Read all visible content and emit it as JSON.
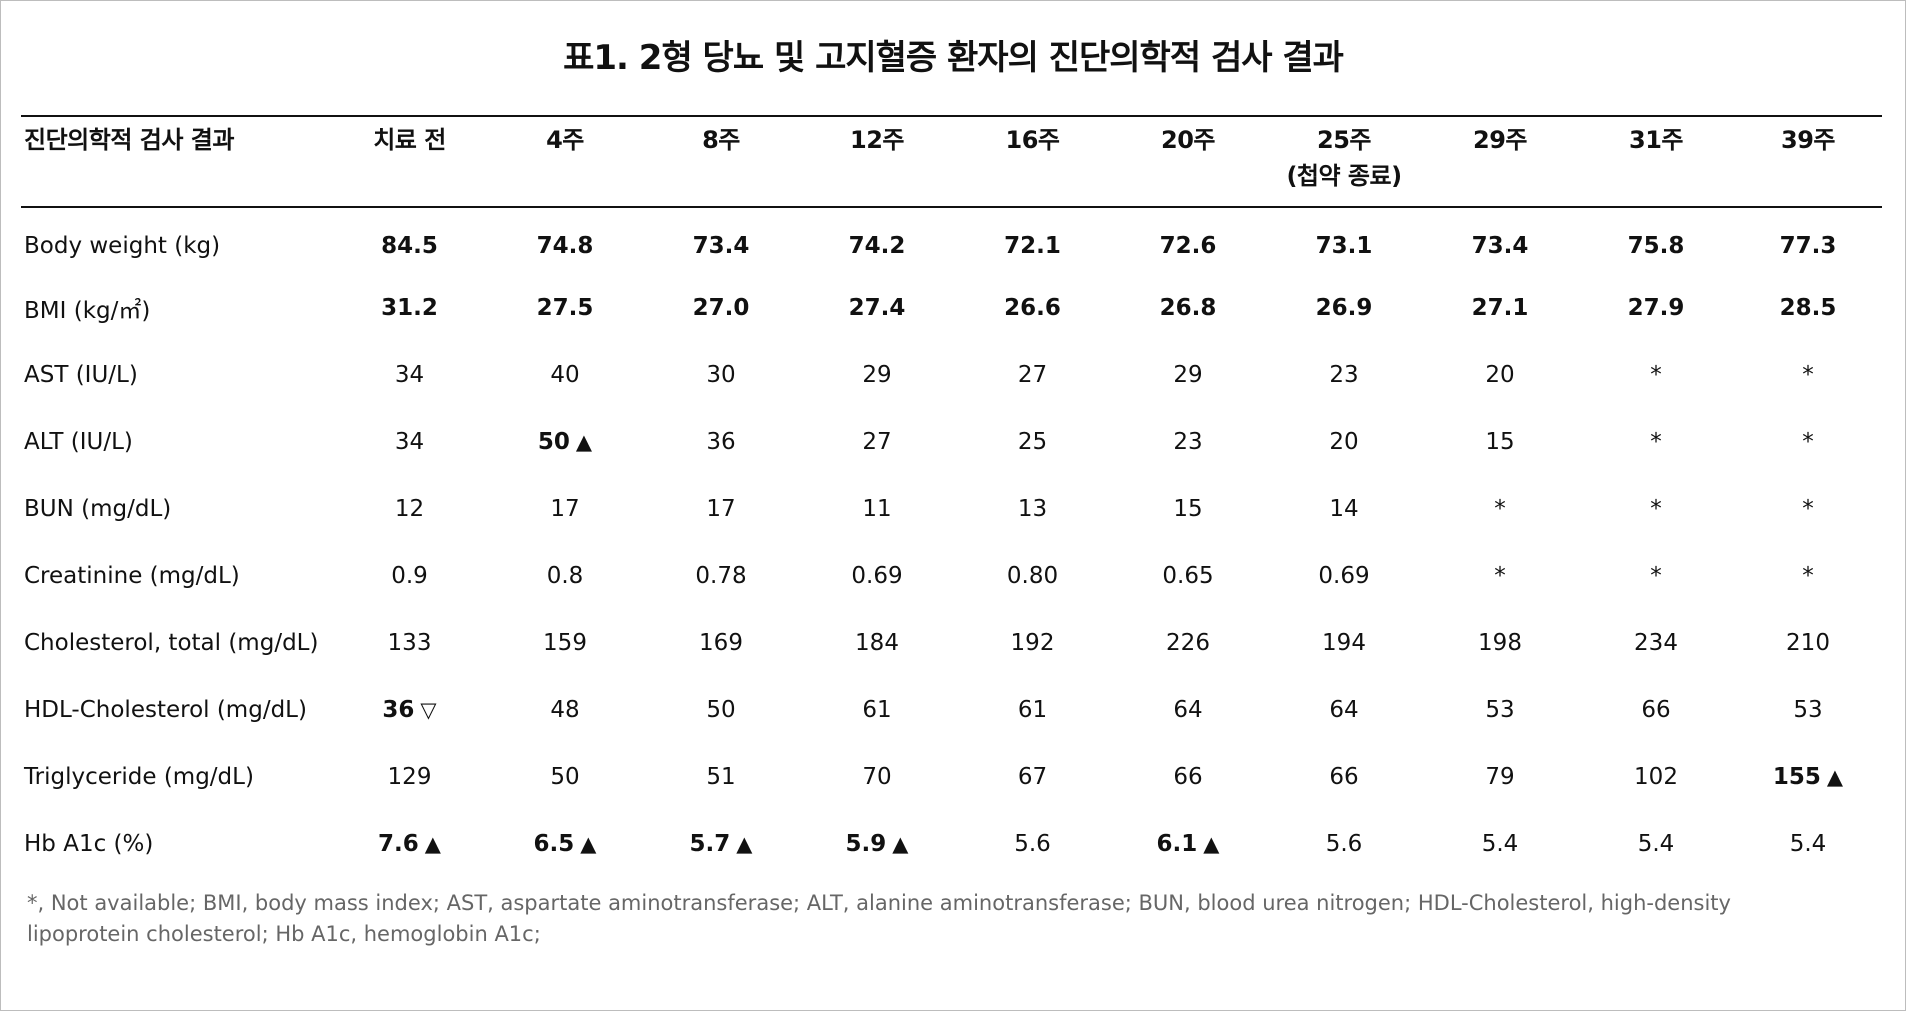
{
  "title": "표1. 2형 당뇨 및 고지혈증 환자의 진단의학적 검사 결과",
  "header": {
    "first": "진단의학적 검사 결과",
    "columns": [
      {
        "label": "치료 전",
        "sub": ""
      },
      {
        "label": "4주",
        "sub": ""
      },
      {
        "label": "8주",
        "sub": ""
      },
      {
        "label": "12주",
        "sub": ""
      },
      {
        "label": "16주",
        "sub": ""
      },
      {
        "label": "20주",
        "sub": ""
      },
      {
        "label": "25주",
        "sub": "(첩약 종료)"
      },
      {
        "label": "29주",
        "sub": ""
      },
      {
        "label": "31주",
        "sub": ""
      },
      {
        "label": "39주",
        "sub": ""
      }
    ]
  },
  "rows": [
    {
      "label": "Body weight (kg)",
      "cells": [
        {
          "v": "84.5",
          "b": true
        },
        {
          "v": "74.8",
          "b": true
        },
        {
          "v": "73.4",
          "b": true
        },
        {
          "v": "74.2",
          "b": true
        },
        {
          "v": "72.1",
          "b": true
        },
        {
          "v": "72.6",
          "b": true
        },
        {
          "v": "73.1",
          "b": true
        },
        {
          "v": "73.4",
          "b": true
        },
        {
          "v": "75.8",
          "b": true
        },
        {
          "v": "77.3",
          "b": true
        }
      ]
    },
    {
      "label": "BMI (kg/㎡)",
      "cells": [
        {
          "v": "31.2",
          "b": true
        },
        {
          "v": "27.5",
          "b": true
        },
        {
          "v": "27.0",
          "b": true
        },
        {
          "v": "27.4",
          "b": true
        },
        {
          "v": "26.6",
          "b": true
        },
        {
          "v": "26.8",
          "b": true
        },
        {
          "v": "26.9",
          "b": true
        },
        {
          "v": "27.1",
          "b": true
        },
        {
          "v": "27.9",
          "b": true
        },
        {
          "v": "28.5",
          "b": true
        }
      ]
    },
    {
      "label": "AST (IU/L)",
      "cells": [
        {
          "v": "34"
        },
        {
          "v": "40"
        },
        {
          "v": "30"
        },
        {
          "v": "29"
        },
        {
          "v": "27"
        },
        {
          "v": "29"
        },
        {
          "v": "23"
        },
        {
          "v": "20"
        },
        {
          "v": "*"
        },
        {
          "v": "*"
        }
      ]
    },
    {
      "label": "ALT (IU/L)",
      "cells": [
        {
          "v": "34"
        },
        {
          "v": "50",
          "b": true,
          "m": "▲"
        },
        {
          "v": "36"
        },
        {
          "v": "27"
        },
        {
          "v": "25"
        },
        {
          "v": "23"
        },
        {
          "v": "20"
        },
        {
          "v": "15"
        },
        {
          "v": "*"
        },
        {
          "v": "*"
        }
      ]
    },
    {
      "label": "BUN (mg/dL)",
      "cells": [
        {
          "v": "12"
        },
        {
          "v": "17"
        },
        {
          "v": "17"
        },
        {
          "v": "11"
        },
        {
          "v": "13"
        },
        {
          "v": "15"
        },
        {
          "v": "14"
        },
        {
          "v": "*"
        },
        {
          "v": "*"
        },
        {
          "v": "*"
        }
      ]
    },
    {
      "label": "Creatinine (mg/dL)",
      "cells": [
        {
          "v": "0.9"
        },
        {
          "v": "0.8"
        },
        {
          "v": "0.78"
        },
        {
          "v": "0.69"
        },
        {
          "v": "0.80"
        },
        {
          "v": "0.65"
        },
        {
          "v": "0.69"
        },
        {
          "v": "*"
        },
        {
          "v": "*"
        },
        {
          "v": "*"
        }
      ]
    },
    {
      "label": "Cholesterol, total (mg/dL)",
      "cells": [
        {
          "v": "133"
        },
        {
          "v": "159"
        },
        {
          "v": "169"
        },
        {
          "v": "184"
        },
        {
          "v": "192"
        },
        {
          "v": "226"
        },
        {
          "v": "194"
        },
        {
          "v": "198"
        },
        {
          "v": "234"
        },
        {
          "v": "210"
        }
      ]
    },
    {
      "label": "HDL-Cholesterol (mg/dL)",
      "cells": [
        {
          "v": "36",
          "b": true,
          "m": "▽"
        },
        {
          "v": "48"
        },
        {
          "v": "50"
        },
        {
          "v": "61"
        },
        {
          "v": "61"
        },
        {
          "v": "64"
        },
        {
          "v": "64"
        },
        {
          "v": "53"
        },
        {
          "v": "66"
        },
        {
          "v": "53"
        }
      ]
    },
    {
      "label": "Triglyceride (mg/dL)",
      "cells": [
        {
          "v": "129"
        },
        {
          "v": "50"
        },
        {
          "v": "51"
        },
        {
          "v": "70"
        },
        {
          "v": "67"
        },
        {
          "v": "66"
        },
        {
          "v": "66"
        },
        {
          "v": "79"
        },
        {
          "v": "102"
        },
        {
          "v": "155",
          "b": true,
          "m": "▲"
        }
      ]
    },
    {
      "label": "Hb A1c (%)",
      "cells": [
        {
          "v": "7.6",
          "b": true,
          "m": "▲"
        },
        {
          "v": "6.5",
          "b": true,
          "m": "▲"
        },
        {
          "v": "5.7",
          "b": true,
          "m": "▲"
        },
        {
          "v": "5.9",
          "b": true,
          "m": "▲"
        },
        {
          "v": "5.6"
        },
        {
          "v": "6.1",
          "b": true,
          "m": "▲"
        },
        {
          "v": "5.6"
        },
        {
          "v": "5.4"
        },
        {
          "v": "5.4"
        },
        {
          "v": "5.4"
        }
      ]
    }
  ],
  "footnote": "*, Not available; BMI, body mass index; AST, aspartate aminotransferase; ALT, alanine aminotransferase; BUN, blood urea nitrogen; HDL-Cholesterol, high-density lipoprotein cholesterol; Hb A1c, hemoglobin A1c;"
}
